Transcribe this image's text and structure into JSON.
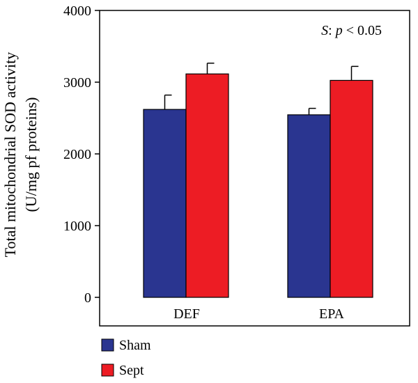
{
  "chart_data": {
    "type": "bar",
    "categories": [
      "DEF",
      "EPA"
    ],
    "series": [
      {
        "name": "Sham",
        "values": [
          2620,
          2545
        ],
        "errors": [
          200,
          90
        ],
        "color": "#2a3590"
      },
      {
        "name": "Sept",
        "values": [
          3115,
          3025
        ],
        "errors": [
          150,
          195
        ],
        "color": "#ed1c24"
      }
    ],
    "ylabel_lines": [
      "Total mitochondrial SOD activity",
      "(U/mg pf proteins)"
    ],
    "xlabel": "",
    "ylim": [
      0,
      4000
    ],
    "yticks": [
      "0",
      "1000",
      "2000",
      "3000",
      "4000"
    ],
    "annotation": {
      "italic_part": "S",
      "rest": ": ",
      "p_symbol": "p",
      "comparison": " < 0.05"
    },
    "legend_position": "bottom-left",
    "grid": false
  }
}
